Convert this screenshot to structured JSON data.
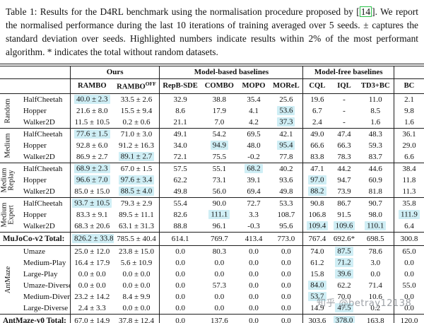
{
  "caption": {
    "prefix": "Table 1: Results for the D4RL benchmark using the normalisation procedure proposed by [",
    "citation": "14",
    "suffix": "]. We report the normalised performance during the last 10 iterations of training averaged over 5 seeds. ± captures the standard deviation over seeds. Highlighted numbers indicate results within 2% of the most performant algorithm. * indicates the total without random datasets."
  },
  "colors": {
    "highlight": "#cfeef5",
    "citation_box": "#2bc24b"
  },
  "watermark": "知乎 @betray12138",
  "table": {
    "group_header_row": [
      {
        "label": "",
        "span": 2,
        "vl": false
      },
      {
        "label": "Ours",
        "span": 2,
        "vl": true
      },
      {
        "label": "Model-based baselines",
        "span": 4,
        "vl": true
      },
      {
        "label": "Model-free baselines",
        "span": 3,
        "vl": true
      },
      {
        "label": "",
        "span": 1,
        "vl": true
      }
    ],
    "columns": [
      {
        "t": "RAMBO",
        "vl": true
      },
      {
        "t": "RAMBO",
        "sup": "OFF"
      },
      {
        "t": "RepB-SDE",
        "vl": true
      },
      {
        "t": "COMBO"
      },
      {
        "t": "MOPO"
      },
      {
        "t": "MOReL"
      },
      {
        "t": "CQL",
        "vl": true
      },
      {
        "t": "IQL"
      },
      {
        "t": "TD3+BC"
      },
      {
        "t": "BC",
        "vl": true
      }
    ],
    "blocks": [
      {
        "type": "section",
        "label": "Random",
        "rows": [
          {
            "env": "HalfCheetah",
            "values": [
              "40.0 ± 2.3",
              "33.5 ± 2.6",
              "32.9",
              "38.8",
              "35.4",
              "25.6",
              "19.6",
              "-",
              "11.0",
              "2.1"
            ],
            "hl": [
              0
            ]
          },
          {
            "env": "Hopper",
            "values": [
              "21.6 ± 8.0",
              "15.5 ± 9.4",
              "8.6",
              "17.9",
              "4.1",
              "53.6",
              "6.7",
              "-",
              "8.5",
              "9.8"
            ],
            "hl": [
              5
            ]
          },
          {
            "env": "Walker2D",
            "values": [
              "11.5 ± 10.5",
              "0.2 ± 0.6",
              "21.1",
              "7.0",
              "4.2",
              "37.3",
              "2.4",
              "-",
              "1.6",
              "1.6"
            ],
            "hl": [
              5
            ]
          }
        ]
      },
      {
        "type": "section",
        "label": "Medium",
        "rows": [
          {
            "env": "HalfCheetah",
            "values": [
              "77.6 ± 1.5",
              "71.0 ± 3.0",
              "49.1",
              "54.2",
              "69.5",
              "42.1",
              "49.0",
              "47.4",
              "48.3",
              "36.1"
            ],
            "hl": [
              0
            ]
          },
          {
            "env": "Hopper",
            "values": [
              "92.8 ± 6.0",
              "91.2 ± 16.3",
              "34.0",
              "94.9",
              "48.0",
              "95.4",
              "66.6",
              "66.3",
              "59.3",
              "29.0"
            ],
            "hl": [
              3,
              5
            ]
          },
          {
            "env": "Walker2D",
            "values": [
              "86.9 ± 2.7",
              "89.1 ± 2.7",
              "72.1",
              "75.5",
              "-0.2",
              "77.8",
              "83.8",
              "78.3",
              "83.7",
              "6.6"
            ],
            "hl": [
              1
            ]
          }
        ]
      },
      {
        "type": "section",
        "label": "Medium\nReplay",
        "rows": [
          {
            "env": "HalfCheetah",
            "values": [
              "68.9 ± 2.3",
              "67.0 ± 1.5",
              "57.5",
              "55.1",
              "68.2",
              "40.2",
              "47.1",
              "44.2",
              "44.6",
              "38.4"
            ],
            "hl": [
              0,
              4
            ]
          },
          {
            "env": "Hopper",
            "values": [
              "96.6 ± 7.0",
              "97.6 ± 3.4",
              "62.2",
              "73.1",
              "39.1",
              "93.6",
              "97.0",
              "94.7",
              "60.9",
              "11.8"
            ],
            "hl": [
              0,
              1,
              6
            ]
          },
          {
            "env": "Walker2D",
            "values": [
              "85.0 ± 15.0",
              "88.5 ± 4.0",
              "49.8",
              "56.0",
              "69.4",
              "49.8",
              "88.2",
              "73.9",
              "81.8",
              "11.3"
            ],
            "hl": [
              1,
              6
            ]
          }
        ]
      },
      {
        "type": "section",
        "label": "Medium\nExpert",
        "rows": [
          {
            "env": "HalfCheetah",
            "values": [
              "93.7 ± 10.5",
              "79.3 ± 2.9",
              "55.4",
              "90.0",
              "72.7",
              "53.3",
              "90.8",
              "86.7",
              "90.7",
              "35.8"
            ],
            "hl": [
              0
            ]
          },
          {
            "env": "Hopper",
            "values": [
              "83.3 ± 9.1",
              "89.5 ± 11.1",
              "82.6",
              "111.1",
              "3.3",
              "108.7",
              "106.8",
              "91.5",
              "98.0",
              "111.9"
            ],
            "hl": [
              3,
              9
            ]
          },
          {
            "env": "Walker2D",
            "values": [
              "68.3 ± 20.6",
              "63.1 ± 31.3",
              "88.8",
              "96.1",
              "-0.3",
              "95.6",
              "109.4",
              "109.6",
              "110.1",
              "6.4"
            ],
            "hl": [
              6,
              7,
              8
            ]
          }
        ]
      },
      {
        "type": "total",
        "label": "MuJoCo-v2 Total:",
        "values": [
          "826.2 ± 33.8",
          "785.5 ± 40.4",
          "614.1",
          "769.7",
          "413.4",
          "773.0",
          "767.4",
          "692.6*",
          "698.5",
          "300.8"
        ],
        "hl": [
          0
        ]
      },
      {
        "type": "section",
        "label": "AntMaze",
        "rows": [
          {
            "env": "Umaze",
            "values": [
              "25.0 ± 12.0",
              "23.8 ± 15.0",
              "0.0",
              "80.3",
              "0.0",
              "0.0",
              "74.0",
              "87.5",
              "78.6",
              "65.0"
            ],
            "hl": [
              7
            ]
          },
          {
            "env": "Medium-Play",
            "values": [
              "16.4 ± 17.9",
              "5.6 ± 10.9",
              "0.0",
              "0.0",
              "0.0",
              "0.0",
              "61.2",
              "71.2",
              "3.0",
              "0.0"
            ],
            "hl": [
              7
            ]
          },
          {
            "env": "Large-Play",
            "values": [
              "0.0 ± 0.0",
              "0.0 ± 0.0",
              "0.0",
              "0.0",
              "0.0",
              "0.0",
              "15.8",
              "39.6",
              "0.0",
              "0.0"
            ],
            "hl": [
              7
            ]
          },
          {
            "env": "Umaze-Diverse",
            "values": [
              "0.0 ± 0.0",
              "0.0 ± 0.0",
              "0.0",
              "57.3",
              "0.0",
              "0.0",
              "84.0",
              "62.2",
              "71.4",
              "55.0"
            ],
            "hl": [
              6
            ]
          },
          {
            "env": "Medium-Diverse",
            "values": [
              "23.2 ± 14.2",
              "8.4 ± 9.9",
              "0.0",
              "0.0",
              "0.0",
              "0.0",
              "53.7",
              "70.0",
              "10.6",
              "0.0"
            ],
            "hl": [
              6
            ]
          },
          {
            "env": "Large-Diverse",
            "values": [
              "2.4 ± 3.3",
              "0.0 ± 0.0",
              "0.0",
              "0.0",
              "0.0",
              "0.0",
              "14.9",
              "47.5",
              "0.2",
              "0.0"
            ],
            "hl": [
              7
            ]
          }
        ]
      },
      {
        "type": "total",
        "label": "AntMaze-v0 Total:",
        "values": [
          "67.0 ± 14.9",
          "37.8 ± 12.4",
          "0.0",
          "137.6",
          "0.0",
          "0.0",
          "303.6",
          "378.0",
          "163.8",
          "120.0"
        ],
        "hl": [
          7
        ]
      }
    ]
  }
}
